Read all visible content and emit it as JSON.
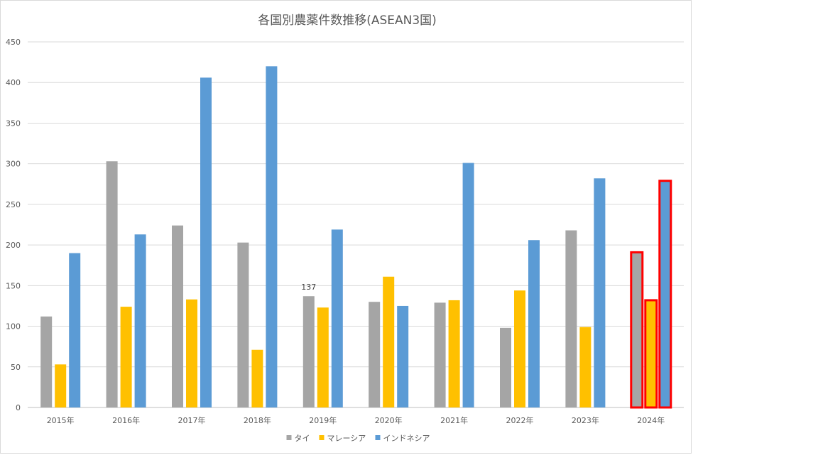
{
  "chart_data": {
    "type": "bar",
    "title": "各国別農薬件数推移(ASEAN3国)",
    "categories": [
      "2015年",
      "2016年",
      "2017年",
      "2018年",
      "2019年",
      "2020年",
      "2021年",
      "2022年",
      "2023年",
      "2024年"
    ],
    "series": [
      {
        "name": "タイ",
        "color": "#a5a5a5",
        "values": [
          112,
          303,
          224,
          203,
          137,
          130,
          129,
          98,
          218,
          191
        ]
      },
      {
        "name": "マレーシア",
        "color": "#ffc000",
        "values": [
          53,
          124,
          133,
          71,
          123,
          161,
          132,
          144,
          99,
          132
        ]
      },
      {
        "name": "インドネシア",
        "color": "#5b9bd5",
        "values": [
          190,
          213,
          406,
          420,
          219,
          125,
          301,
          206,
          282,
          279
        ]
      }
    ],
    "ylim": [
      0,
      450
    ],
    "yticks": [
      "0",
      "50",
      "100",
      "150",
      "200",
      "250",
      "300",
      "350",
      "400",
      "450"
    ],
    "grid": true,
    "legend_position": "bottom",
    "data_labels": [
      {
        "series": "タイ",
        "category": "2019年",
        "text": "137"
      }
    ],
    "highlight": {
      "category": "2024年",
      "outline_color": "#ff0000"
    }
  }
}
